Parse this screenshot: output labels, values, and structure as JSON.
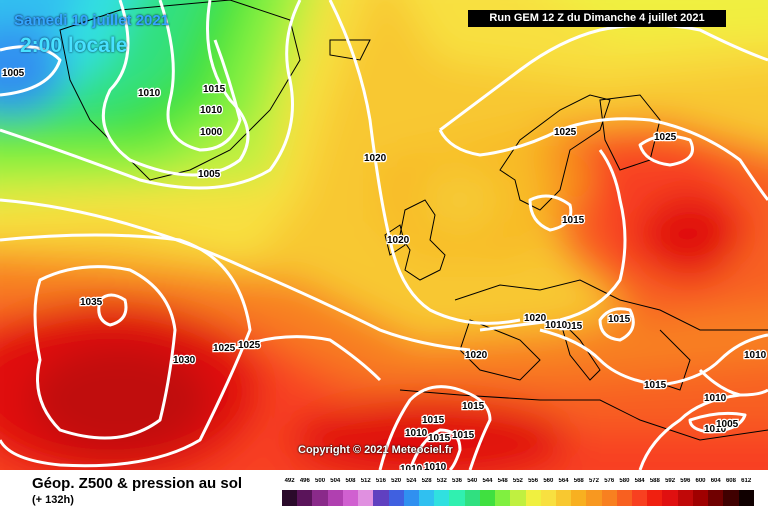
{
  "header": {
    "date": "Samedi 10 juillet 2021",
    "time": "2:00 locale",
    "run": "Run GEM 12 Z du Dimanche 4 juillet 2021"
  },
  "copyright": "Copyright © 2021 Meteociel.fr",
  "footer": {
    "title": "Géop. Z500 & pression au sol",
    "lead": "(+ 132h)"
  },
  "legend": {
    "values": [
      "492",
      "496",
      "500",
      "504",
      "508",
      "512",
      "516",
      "520",
      "524",
      "528",
      "532",
      "536",
      "540",
      "544",
      "548",
      "552",
      "556",
      "560",
      "564",
      "568",
      "572",
      "576",
      "580",
      "584",
      "588",
      "592",
      "596",
      "600",
      "604",
      "608",
      "612"
    ],
    "colors": [
      "#2a0a2a",
      "#5a145a",
      "#8a2a8a",
      "#b040b0",
      "#d060d0",
      "#e090e0",
      "#6040c0",
      "#4060e0",
      "#3090f0",
      "#30c0f0",
      "#30e0e0",
      "#30f0b0",
      "#30e080",
      "#40e040",
      "#80f040",
      "#c0f040",
      "#f0f040",
      "#f8e040",
      "#f8c830",
      "#f8b020",
      "#f89820",
      "#f88020",
      "#f86020",
      "#f84020",
      "#f02010",
      "#e01010",
      "#c00808",
      "#a00000",
      "#700000",
      "#400000",
      "#100000"
    ]
  },
  "isobars": [
    {
      "label": "1005",
      "pos": "top-left corner"
    },
    {
      "label": "1010",
      "pos": "south of Greenland"
    },
    {
      "label": "1015",
      "pos": "south of Greenland"
    },
    {
      "label": "1010",
      "pos": "Greenland south coast"
    },
    {
      "label": "1000",
      "pos": "Greenland south coast"
    },
    {
      "label": "1005",
      "pos": "south of Greenland"
    },
    {
      "label": "1020",
      "pos": "north Atlantic"
    },
    {
      "label": "1020",
      "pos": "west of Ireland"
    },
    {
      "label": "1035",
      "pos": "Azores high"
    },
    {
      "label": "1030",
      "pos": "mid Atlantic"
    },
    {
      "label": "1025",
      "pos": "mid Atlantic"
    },
    {
      "label": "1025",
      "pos": "mid Atlantic"
    },
    {
      "label": "1025",
      "pos": "Scandinavia"
    },
    {
      "label": "1025",
      "pos": "Finland"
    },
    {
      "label": "1015",
      "pos": "Baltic"
    },
    {
      "label": "1020",
      "pos": "Alps"
    },
    {
      "label": "1015",
      "pos": "Alps"
    },
    {
      "label": "1010",
      "pos": "Italy"
    },
    {
      "label": "1015",
      "pos": "Balkans"
    },
    {
      "label": "1020",
      "pos": "Bay of Biscay"
    },
    {
      "label": "1015",
      "pos": "western Mediterranean"
    },
    {
      "label": "1015",
      "pos": "Morocco"
    },
    {
      "label": "1010",
      "pos": "Morocco"
    },
    {
      "label": "1015",
      "pos": "Algeria"
    },
    {
      "label": "1015",
      "pos": "Algeria"
    },
    {
      "label": "1010",
      "pos": "Sahara"
    },
    {
      "label": "1010",
      "pos": "Sahara"
    },
    {
      "label": "1015",
      "pos": "Aegean"
    },
    {
      "label": "1010",
      "pos": "Turkey"
    },
    {
      "label": "1010",
      "pos": "eastern Mediterranean"
    },
    {
      "label": "1005",
      "pos": "Middle East"
    },
    {
      "label": "1010",
      "pos": "right edge"
    }
  ]
}
